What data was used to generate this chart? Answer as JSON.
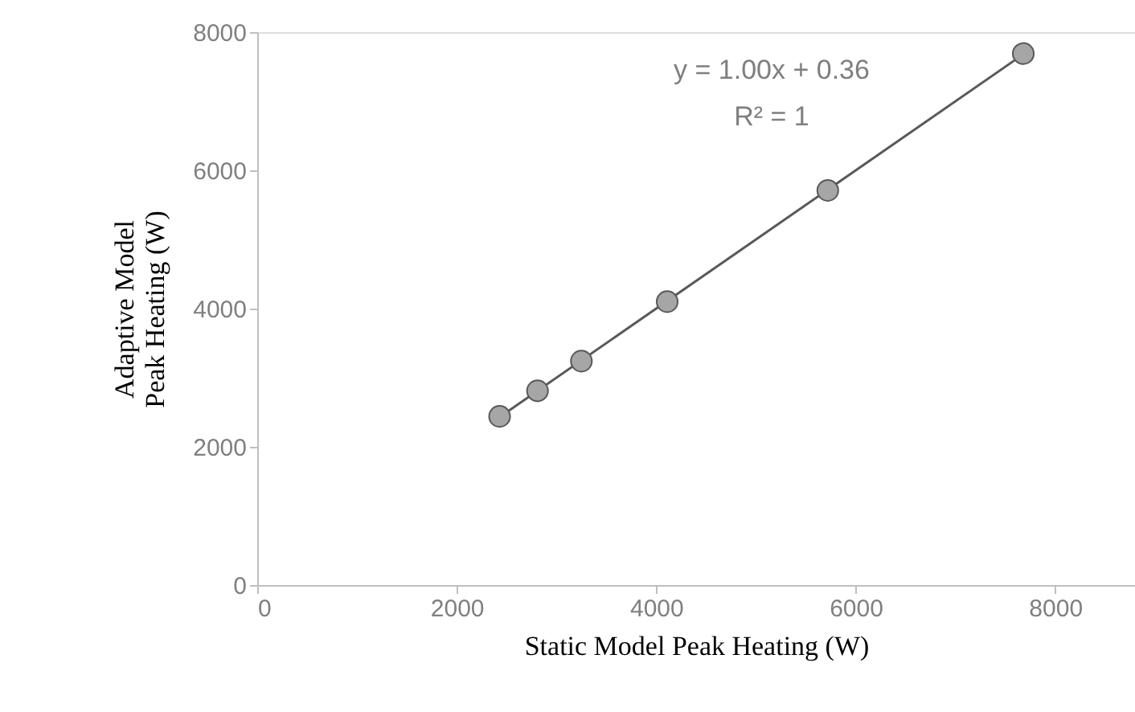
{
  "chart_data": {
    "type": "scatter",
    "xlabel": "Static Model Peak Heating (W)",
    "ylabel": "Adaptive Model\nPeak  Heating (W)",
    "series": [
      {
        "color": "#a6a6a6",
        "x": [
          2430,
          2810,
          3250,
          4110,
          5720,
          7680
        ],
        "values": [
          2440,
          2810,
          3240,
          4100,
          5710,
          7690
        ],
        "marker": "circle"
      },
      {
        "type": "line",
        "color": "#595959",
        "x": [
          2430,
          7680
        ],
        "values": [
          2430,
          7680
        ],
        "line_style": "solid"
      }
    ],
    "annotations": [
      "y = 1.00x + 0.36\nR² = 1"
    ],
    "xlim": [
      0,
      8800
    ],
    "xticks": [
      0,
      2000,
      4000,
      6000,
      8000
    ],
    "ylim": [
      0,
      8000
    ],
    "yticks": [
      0,
      2000,
      4000,
      6000,
      8000
    ],
    "grid": false
  }
}
